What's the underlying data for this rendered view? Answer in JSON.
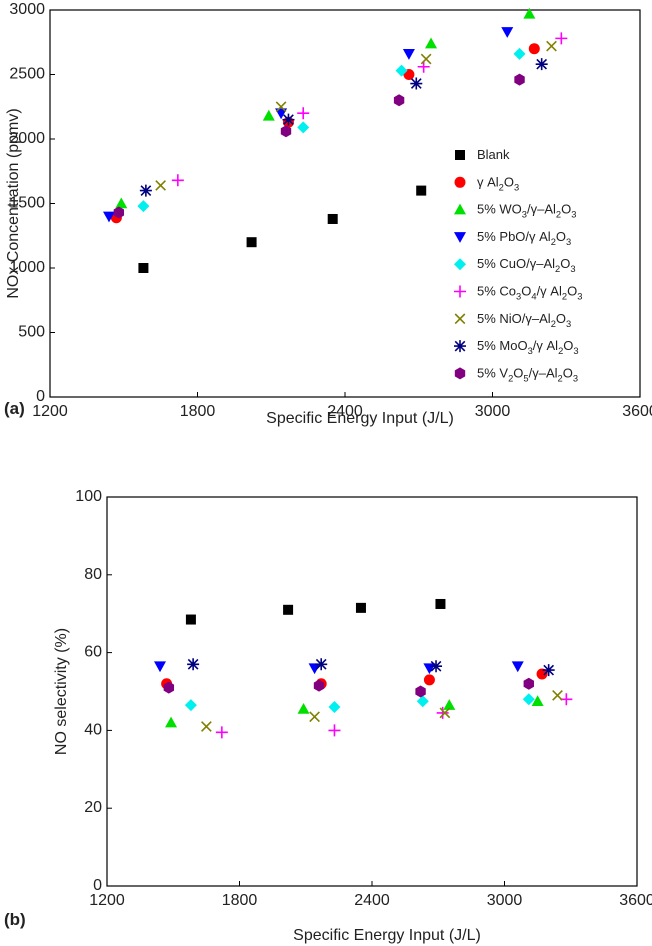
{
  "chart_data": [
    {
      "type": "scatter",
      "panel_label": "(a)",
      "xlabel": "Specific Energy Input (J/L)",
      "ylabel": "NOx Concentration (ppmv)",
      "xlim": [
        1200,
        3600
      ],
      "xticks": [
        1200,
        1800,
        2400,
        3000,
        3600
      ],
      "ylim": [
        0,
        3000
      ],
      "yticks": [
        0,
        500,
        1000,
        1500,
        2000,
        2500,
        3000
      ],
      "legend": "right",
      "series": [
        {
          "name": "Blank",
          "color": "#000000",
          "marker": "square",
          "x": [
            1580,
            2020,
            2350,
            2710
          ],
          "values": [
            1000,
            1200,
            1380,
            1600
          ]
        },
        {
          "name": "γ Al2O3",
          "color": "#ff0000",
          "marker": "circle",
          "x": [
            1470,
            2170,
            2660,
            3170
          ],
          "values": [
            1390,
            2130,
            2500,
            2700
          ]
        },
        {
          "name": "5% WO3/γ–Al2O3",
          "color": "#00e000",
          "marker": "triangle-up",
          "x": [
            1490,
            2090,
            2750,
            3150
          ],
          "values": [
            1500,
            2180,
            2740,
            2970
          ]
        },
        {
          "name": "5% PbO/γ  Al2O3",
          "color": "#0000ff",
          "marker": "triangle-down",
          "x": [
            1440,
            2140,
            2660,
            3060
          ],
          "values": [
            1400,
            2200,
            2660,
            2830
          ]
        },
        {
          "name": "5% CuO/γ–Al2O3",
          "color": "#00f0f0",
          "marker": "diamond",
          "x": [
            1580,
            2230,
            2630,
            3110
          ],
          "values": [
            1480,
            2090,
            2530,
            2660
          ]
        },
        {
          "name": "5% Co3O4/γ  Al2O3",
          "color": "#ff00ff",
          "marker": "plus",
          "x": [
            1720,
            2230,
            2720,
            3280
          ],
          "values": [
            1680,
            2200,
            2560,
            2780
          ]
        },
        {
          "name": "5% NiO/γ–Al2O3",
          "color": "#808000",
          "marker": "cross",
          "x": [
            1650,
            2140,
            2730,
            3240
          ],
          "values": [
            1640,
            2250,
            2620,
            2720
          ]
        },
        {
          "name": "5% MoO3/γ  Al2O3",
          "color": "#000080",
          "marker": "asterisk",
          "x": [
            1590,
            2170,
            2690,
            3200
          ],
          "values": [
            1600,
            2150,
            2430,
            2580
          ]
        },
        {
          "name": "5% V2O5/γ–Al2O3",
          "color": "#800080",
          "marker": "hexagon",
          "x": [
            1480,
            2160,
            2620,
            3110
          ],
          "values": [
            1430,
            2060,
            2300,
            2460
          ]
        }
      ]
    },
    {
      "type": "scatter",
      "panel_label": "(b)",
      "xlabel": "Specific Energy Input (J/L)",
      "ylabel": "NO selectivity (%)",
      "xlim": [
        1200,
        3600
      ],
      "xticks": [
        1200,
        1800,
        2400,
        3000,
        3600
      ],
      "ylim": [
        0,
        100
      ],
      "yticks": [
        0,
        20,
        40,
        60,
        80,
        100
      ],
      "series": [
        {
          "color": "#000000",
          "marker": "square",
          "x": [
            1580,
            2020,
            2350,
            2710
          ],
          "values": [
            68.5,
            71,
            71.5,
            72.5
          ]
        },
        {
          "color": "#ff0000",
          "marker": "circle",
          "x": [
            1470,
            2170,
            2660,
            3170
          ],
          "values": [
            52,
            52,
            53,
            54.5
          ]
        },
        {
          "color": "#00e000",
          "marker": "triangle-up",
          "x": [
            1490,
            2090,
            2750,
            3150
          ],
          "values": [
            42,
            45.5,
            46.5,
            47.5
          ]
        },
        {
          "color": "#0000ff",
          "marker": "triangle-down",
          "x": [
            1440,
            2140,
            2660,
            3060
          ],
          "values": [
            56.5,
            56,
            56,
            56.5
          ]
        },
        {
          "color": "#00f0f0",
          "marker": "diamond",
          "x": [
            1580,
            2230,
            2630,
            3110
          ],
          "values": [
            46.5,
            46,
            47.5,
            48
          ]
        },
        {
          "color": "#ff00ff",
          "marker": "plus",
          "x": [
            1720,
            2230,
            2720,
            3280
          ],
          "values": [
            39.5,
            40,
            44.5,
            48
          ]
        },
        {
          "color": "#808000",
          "marker": "cross",
          "x": [
            1650,
            2140,
            2730,
            3240
          ],
          "values": [
            41,
            43.5,
            44.5,
            49
          ]
        },
        {
          "color": "#000080",
          "marker": "asterisk",
          "x": [
            1590,
            2170,
            2690,
            3200
          ],
          "values": [
            57,
            57,
            56.5,
            55.5
          ]
        },
        {
          "color": "#800080",
          "marker": "hexagon",
          "x": [
            1480,
            2160,
            2620,
            3110
          ],
          "values": [
            51,
            51.5,
            50,
            52
          ]
        }
      ]
    }
  ]
}
